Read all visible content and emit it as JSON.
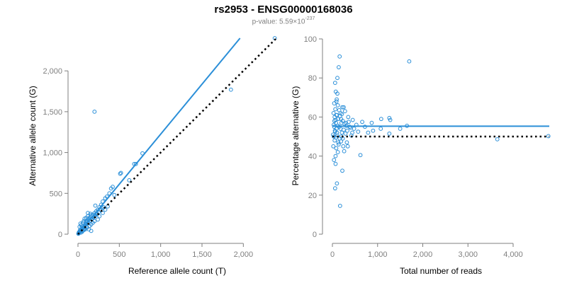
{
  "header": {
    "title": "rs2953 - ENSG00000168036",
    "pvalue_prefix": "p-value: 5.59×10",
    "pvalue_exponent": "-237"
  },
  "chart_data": [
    {
      "type": "scatter",
      "xlabel": "Reference allele count (T)",
      "ylabel": "Alternative allele count (G)",
      "xticks": [
        0,
        500,
        1000,
        1500,
        2000
      ],
      "xtick_labels": [
        "0",
        "500",
        "1,000",
        "1,500",
        "2,000"
      ],
      "yticks": [
        0,
        500,
        1000,
        1500,
        2000
      ],
      "ytick_labels": [
        "0",
        "500",
        "1,000",
        "1,500",
        "2,000"
      ],
      "xlim": [
        0,
        2400
      ],
      "ylim": [
        0,
        2400
      ],
      "colors": {
        "points": "#2b8fd8",
        "fit": "#2b8fd8",
        "reference": "#000000"
      },
      "fit_line": {
        "x": [
          0,
          1960
        ],
        "y": [
          0,
          2400
        ]
      },
      "reference_line": {
        "x": [
          0,
          2400
        ],
        "y": [
          0,
          2400
        ]
      },
      "points": [
        {
          "x": 2380,
          "y": 2400
        },
        {
          "x": 1850,
          "y": 1770
        },
        {
          "x": 200,
          "y": 1500
        },
        {
          "x": 780,
          "y": 990
        },
        {
          "x": 700,
          "y": 860
        },
        {
          "x": 680,
          "y": 860
        },
        {
          "x": 520,
          "y": 750
        },
        {
          "x": 510,
          "y": 740
        },
        {
          "x": 620,
          "y": 660
        },
        {
          "x": 420,
          "y": 580
        },
        {
          "x": 400,
          "y": 560
        },
        {
          "x": 380,
          "y": 500
        },
        {
          "x": 350,
          "y": 460
        },
        {
          "x": 330,
          "y": 440
        },
        {
          "x": 300,
          "y": 400
        },
        {
          "x": 280,
          "y": 360
        },
        {
          "x": 260,
          "y": 330
        },
        {
          "x": 240,
          "y": 300
        },
        {
          "x": 220,
          "y": 280
        },
        {
          "x": 200,
          "y": 260
        },
        {
          "x": 180,
          "y": 240
        },
        {
          "x": 160,
          "y": 230
        },
        {
          "x": 150,
          "y": 210
        },
        {
          "x": 140,
          "y": 200
        },
        {
          "x": 130,
          "y": 185
        },
        {
          "x": 120,
          "y": 170
        },
        {
          "x": 110,
          "y": 160
        },
        {
          "x": 100,
          "y": 150
        },
        {
          "x": 95,
          "y": 130
        },
        {
          "x": 90,
          "y": 120
        },
        {
          "x": 85,
          "y": 110
        },
        {
          "x": 80,
          "y": 100
        },
        {
          "x": 75,
          "y": 95
        },
        {
          "x": 70,
          "y": 90
        },
        {
          "x": 65,
          "y": 80
        },
        {
          "x": 60,
          "y": 75
        },
        {
          "x": 55,
          "y": 70
        },
        {
          "x": 50,
          "y": 65
        },
        {
          "x": 45,
          "y": 60
        },
        {
          "x": 40,
          "y": 55
        },
        {
          "x": 35,
          "y": 45
        },
        {
          "x": 30,
          "y": 40
        },
        {
          "x": 25,
          "y": 35
        },
        {
          "x": 20,
          "y": 30
        },
        {
          "x": 15,
          "y": 20
        },
        {
          "x": 10,
          "y": 15
        },
        {
          "x": 8,
          "y": 10
        },
        {
          "x": 5,
          "y": 6
        },
        {
          "x": 210,
          "y": 230
        },
        {
          "x": 230,
          "y": 250
        },
        {
          "x": 170,
          "y": 190
        },
        {
          "x": 190,
          "y": 210
        },
        {
          "x": 250,
          "y": 270
        },
        {
          "x": 270,
          "y": 300
        },
        {
          "x": 290,
          "y": 320
        },
        {
          "x": 310,
          "y": 330
        },
        {
          "x": 150,
          "y": 250
        },
        {
          "x": 120,
          "y": 220
        },
        {
          "x": 100,
          "y": 200
        },
        {
          "x": 60,
          "y": 140
        },
        {
          "x": 40,
          "y": 110
        },
        {
          "x": 30,
          "y": 130
        },
        {
          "x": 20,
          "y": 90
        },
        {
          "x": 70,
          "y": 160
        },
        {
          "x": 160,
          "y": 120
        },
        {
          "x": 140,
          "y": 100
        },
        {
          "x": 110,
          "y": 80
        },
        {
          "x": 90,
          "y": 60
        },
        {
          "x": 70,
          "y": 50
        },
        {
          "x": 50,
          "y": 30
        },
        {
          "x": 200,
          "y": 160
        },
        {
          "x": 180,
          "y": 140
        },
        {
          "x": 130,
          "y": 60
        },
        {
          "x": 160,
          "y": 40
        },
        {
          "x": 240,
          "y": 180
        },
        {
          "x": 260,
          "y": 220
        },
        {
          "x": 330,
          "y": 300
        },
        {
          "x": 300,
          "y": 260
        },
        {
          "x": 360,
          "y": 340
        },
        {
          "x": 210,
          "y": 350
        },
        {
          "x": 440,
          "y": 480
        },
        {
          "x": 120,
          "y": 260
        },
        {
          "x": 80,
          "y": 190
        },
        {
          "x": 45,
          "y": 85
        },
        {
          "x": 25,
          "y": 50
        },
        {
          "x": 12,
          "y": 25
        },
        {
          "x": 35,
          "y": 20
        },
        {
          "x": 55,
          "y": 40
        },
        {
          "x": 85,
          "y": 70
        },
        {
          "x": 105,
          "y": 95
        },
        {
          "x": 125,
          "y": 140
        },
        {
          "x": 145,
          "y": 165
        },
        {
          "x": 165,
          "y": 185
        },
        {
          "x": 185,
          "y": 205
        },
        {
          "x": 205,
          "y": 225
        },
        {
          "x": 225,
          "y": 245
        }
      ]
    },
    {
      "type": "scatter",
      "xlabel": "Total number of reads",
      "ylabel": "Percentage alternative (G)",
      "xticks": [
        0,
        1000,
        2000,
        3000,
        4000
      ],
      "xtick_labels": [
        "0",
        "1,000",
        "2,000",
        "3,000",
        "4,000"
      ],
      "yticks": [
        0,
        20,
        40,
        60,
        80,
        100
      ],
      "ytick_labels": [
        "0",
        "20",
        "40",
        "60",
        "80",
        "100"
      ],
      "xlim": [
        0,
        4800
      ],
      "ylim": [
        0,
        100
      ],
      "colors": {
        "points": "#2b8fd8",
        "fit": "#2b8fd8",
        "reference": "#000000"
      },
      "fit_line": {
        "x": [
          0,
          4800
        ],
        "y": [
          55.3,
          55.3
        ]
      },
      "reference_line": {
        "x": [
          0,
          4800
        ],
        "y": [
          50,
          50
        ]
      },
      "points": [
        {
          "x": 4780,
          "y": 50.2
        },
        {
          "x": 3650,
          "y": 48.6
        },
        {
          "x": 1700,
          "y": 88.5
        },
        {
          "x": 1650,
          "y": 55.5
        },
        {
          "x": 1260,
          "y": 51.5
        },
        {
          "x": 1280,
          "y": 58.5
        },
        {
          "x": 1260,
          "y": 59.5
        },
        {
          "x": 1500,
          "y": 54.0
        },
        {
          "x": 1070,
          "y": 54.0
        },
        {
          "x": 1080,
          "y": 59.0
        },
        {
          "x": 900,
          "y": 53.0
        },
        {
          "x": 870,
          "y": 57.0
        },
        {
          "x": 790,
          "y": 52.0
        },
        {
          "x": 720,
          "y": 55.0
        },
        {
          "x": 660,
          "y": 57.5
        },
        {
          "x": 620,
          "y": 40.5
        },
        {
          "x": 570,
          "y": 52.5
        },
        {
          "x": 530,
          "y": 56.0
        },
        {
          "x": 480,
          "y": 54.0
        },
        {
          "x": 450,
          "y": 58.5
        },
        {
          "x": 420,
          "y": 50.5
        },
        {
          "x": 380,
          "y": 55.0
        },
        {
          "x": 350,
          "y": 60.0
        },
        {
          "x": 320,
          "y": 47.0
        },
        {
          "x": 300,
          "y": 57.0
        },
        {
          "x": 280,
          "y": 63.0
        },
        {
          "x": 260,
          "y": 42.5
        },
        {
          "x": 240,
          "y": 45.0
        },
        {
          "x": 220,
          "y": 65.0
        },
        {
          "x": 220,
          "y": 32.5
        },
        {
          "x": 200,
          "y": 50.0
        },
        {
          "x": 190,
          "y": 59.0
        },
        {
          "x": 180,
          "y": 62.0
        },
        {
          "x": 170,
          "y": 14.5
        },
        {
          "x": 160,
          "y": 91.0
        },
        {
          "x": 150,
          "y": 55.0
        },
        {
          "x": 140,
          "y": 85.5
        },
        {
          "x": 130,
          "y": 47.0
        },
        {
          "x": 120,
          "y": 66.0
        },
        {
          "x": 110,
          "y": 72.0
        },
        {
          "x": 100,
          "y": 26.0
        },
        {
          "x": 100,
          "y": 52.0
        },
        {
          "x": 95,
          "y": 69.0
        },
        {
          "x": 90,
          "y": 61.0
        },
        {
          "x": 85,
          "y": 44.0
        },
        {
          "x": 80,
          "y": 57.0
        },
        {
          "x": 75,
          "y": 73.0
        },
        {
          "x": 70,
          "y": 40.0
        },
        {
          "x": 65,
          "y": 64.0
        },
        {
          "x": 60,
          "y": 23.5
        },
        {
          "x": 60,
          "y": 77.5
        },
        {
          "x": 55,
          "y": 53.0
        },
        {
          "x": 50,
          "y": 48.0
        },
        {
          "x": 45,
          "y": 58.0
        },
        {
          "x": 40,
          "y": 67.0
        },
        {
          "x": 35,
          "y": 38.0
        },
        {
          "x": 30,
          "y": 56.0
        },
        {
          "x": 25,
          "y": 62.0
        },
        {
          "x": 20,
          "y": 45.0
        },
        {
          "x": 15,
          "y": 51.0
        },
        {
          "x": 180,
          "y": 54.0
        },
        {
          "x": 200,
          "y": 57.0
        },
        {
          "x": 210,
          "y": 52.0
        },
        {
          "x": 230,
          "y": 58.0
        },
        {
          "x": 250,
          "y": 53.5
        },
        {
          "x": 270,
          "y": 56.5
        },
        {
          "x": 290,
          "y": 51.5
        },
        {
          "x": 310,
          "y": 55.5
        },
        {
          "x": 330,
          "y": 53.0
        },
        {
          "x": 360,
          "y": 57.5
        },
        {
          "x": 400,
          "y": 54.5
        },
        {
          "x": 440,
          "y": 52.0
        },
        {
          "x": 170,
          "y": 60.5
        },
        {
          "x": 160,
          "y": 49.0
        },
        {
          "x": 150,
          "y": 63.5
        },
        {
          "x": 140,
          "y": 46.0
        },
        {
          "x": 130,
          "y": 59.0
        },
        {
          "x": 120,
          "y": 55.5
        },
        {
          "x": 110,
          "y": 50.5
        },
        {
          "x": 100,
          "y": 61.0
        },
        {
          "x": 90,
          "y": 54.0
        },
        {
          "x": 80,
          "y": 49.5
        },
        {
          "x": 70,
          "y": 58.5
        },
        {
          "x": 60,
          "y": 52.5
        },
        {
          "x": 50,
          "y": 60.0
        },
        {
          "x": 40,
          "y": 55.0
        },
        {
          "x": 30,
          "y": 50.0
        },
        {
          "x": 190,
          "y": 47.5
        },
        {
          "x": 210,
          "y": 61.5
        },
        {
          "x": 230,
          "y": 49.0
        },
        {
          "x": 120,
          "y": 42.0
        },
        {
          "x": 90,
          "y": 68.0
        },
        {
          "x": 70,
          "y": 36.0
        },
        {
          "x": 110,
          "y": 80.0
        },
        {
          "x": 250,
          "y": 65.0
        },
        {
          "x": 340,
          "y": 45.0
        }
      ]
    }
  ]
}
